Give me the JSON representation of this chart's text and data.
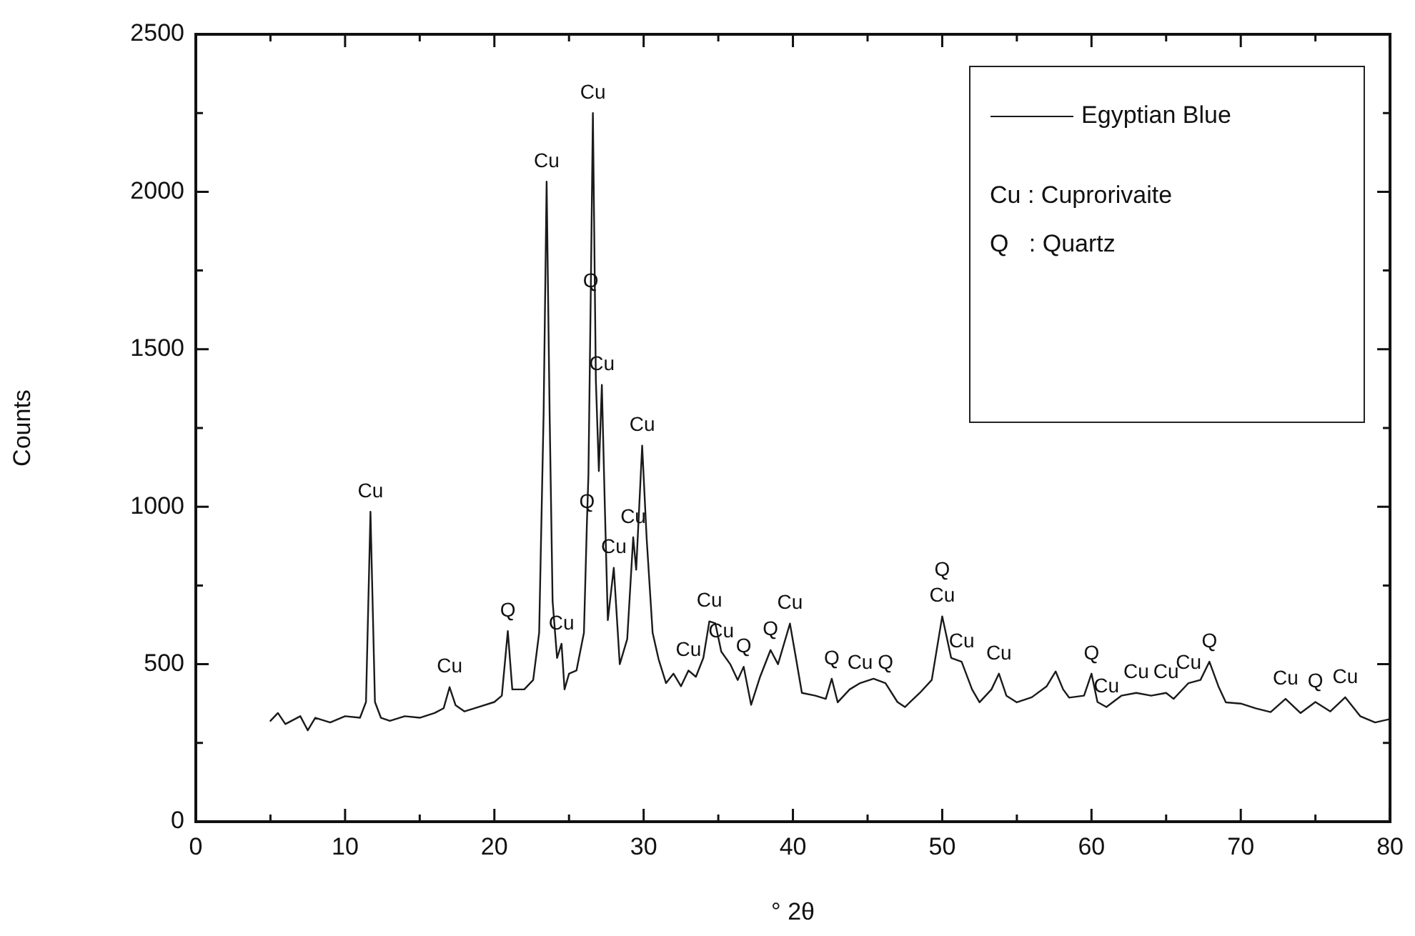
{
  "chart_data": {
    "type": "line",
    "xlabel": "° 2θ",
    "ylabel": "Counts",
    "legend": "top right",
    "marker": "none",
    "xlim": [
      0,
      80
    ],
    "ylim": [
      0,
      2500
    ],
    "xticks": [
      0,
      {
        "value": 5,
        "label": null
      },
      10,
      {
        "value": 15,
        "label": null
      },
      20,
      {
        "value": 25,
        "label": null
      },
      30,
      {
        "value": 35,
        "label": null
      },
      40,
      {
        "value": 45,
        "label": null
      },
      50,
      {
        "value": 55,
        "label": null
      },
      60,
      {
        "value": 65,
        "label": null
      },
      70,
      {
        "value": 75,
        "label": null
      },
      80
    ],
    "yticks": [
      0,
      {
        "value": 250,
        "label": null
      },
      500,
      {
        "value": 750,
        "label": null
      },
      1000,
      {
        "value": 1250,
        "label": null
      },
      1500,
      {
        "value": 1750,
        "label": null
      },
      2000,
      {
        "value": 2250,
        "label": null
      },
      2500
    ],
    "series": [
      {
        "name": "Egyptian Blue",
        "color": "#1a1a1a",
        "x": [
          5,
          5.5,
          6,
          7,
          7.5,
          8,
          9,
          10,
          11,
          11.4,
          11.7,
          12.0,
          12.4,
          13,
          14,
          15,
          16,
          16.6,
          17.0,
          17.4,
          18,
          19,
          20,
          20.5,
          20.9,
          21.2,
          22,
          22.6,
          23.0,
          23.3,
          23.5,
          23.7,
          23.9,
          24.2,
          24.5,
          24.7,
          25.0,
          25.5,
          26.0,
          26.2,
          26.3,
          26.45,
          26.6,
          26.8,
          27.0,
          27.2,
          27.4,
          27.6,
          28.0,
          28.4,
          28.9,
          29.3,
          29.5,
          29.9,
          30.2,
          30.6,
          31,
          31.5,
          32,
          32.5,
          33,
          33.5,
          34.0,
          34.4,
          34.8,
          35.2,
          35.8,
          36.3,
          36.7,
          37.2,
          37.8,
          38.5,
          39.0,
          39.8,
          40.2,
          40.6,
          41.5,
          42.2,
          42.6,
          43,
          43.8,
          44.5,
          45.4,
          46.2,
          47,
          47.5,
          48.5,
          49.3,
          50.0,
          50.6,
          51.3,
          52,
          52.5,
          53.3,
          53.8,
          54.3,
          55,
          56,
          57.0,
          57.6,
          58.1,
          58.5,
          59.5,
          60.0,
          60.4,
          61,
          62,
          63,
          64,
          65,
          65.5,
          66.5,
          67.3,
          67.9,
          68.5,
          69,
          70,
          71,
          72,
          73,
          74,
          75,
          76,
          77,
          78,
          79,
          80
        ],
        "values": [
          320,
          345,
          310,
          335,
          290,
          330,
          315,
          335,
          330,
          380,
          984,
          380,
          330,
          320,
          335,
          330,
          345,
          360,
          427,
          370,
          350,
          365,
          380,
          400,
          605,
          420,
          420,
          450,
          600,
          1300,
          2032,
          1300,
          700,
          520,
          565,
          420,
          470,
          480,
          600,
          950,
          1100,
          1650,
          2250,
          1400,
          1113,
          1387,
          1000,
          640,
          806,
          500,
          580,
          903,
          800,
          1194,
          900,
          600,
          516,
          440,
          470,
          430,
          480,
          460,
          520,
          636,
          630,
          540,
          500,
          450,
          492,
          371,
          460,
          545,
          500,
          629,
          520,
          409,
          400,
          390,
          454,
          379,
          420,
          440,
          454,
          440,
          380,
          364,
          409,
          450,
          652,
          520,
          508,
          420,
          379,
          420,
          470,
          400,
          379,
          395,
          430,
          477,
          420,
          394,
          400,
          470,
          380,
          364,
          400,
          409,
          400,
          409,
          390,
          440,
          450,
          508,
          430,
          379,
          375,
          360,
          348,
          390,
          345,
          380,
          350,
          395,
          335,
          315,
          326
        ]
      }
    ],
    "annotations": [
      {
        "text": "Cu",
        "x": 11.7,
        "y": 984
      },
      {
        "text": "Cu",
        "x": 17.0,
        "y": 427
      },
      {
        "text": "Q",
        "x": 20.9,
        "y": 605
      },
      {
        "text": "Cu",
        "x": 23.5,
        "y": 2032
      },
      {
        "text": "Cu",
        "x": 24.5,
        "y": 565
      },
      {
        "text": "Q",
        "x": 26.45,
        "y": 1650
      },
      {
        "text": "Q",
        "x": 26.2,
        "y": 950
      },
      {
        "text": "Cu",
        "x": 26.6,
        "y": 2250
      },
      {
        "text": "Cu",
        "x": 27.2,
        "y": 1387
      },
      {
        "text": "Cu",
        "x": 29.9,
        "y": 1194
      },
      {
        "text": "Cu",
        "x": 29.3,
        "y": 903
      },
      {
        "text": "Cu",
        "x": 28.0,
        "y": 806
      },
      {
        "text": "Cu",
        "x": 33,
        "y": 480
      },
      {
        "text": "Cu",
        "x": 34.4,
        "y": 636
      },
      {
        "text": "Cu",
        "x": 35.2,
        "y": 540
      },
      {
        "text": "Q",
        "x": 36.7,
        "y": 492
      },
      {
        "text": "Q",
        "x": 38.5,
        "y": 545
      },
      {
        "text": "Cu",
        "x": 39.8,
        "y": 629
      },
      {
        "text": "Q",
        "x": 42.6,
        "y": 454
      },
      {
        "text": "Cu",
        "x": 44.5,
        "y": 440
      },
      {
        "text": "Q",
        "x": 46.2,
        "y": 440
      },
      {
        "text": "Cu",
        "x": 50.0,
        "y": 652
      },
      {
        "text": "Q",
        "x": 50.0,
        "y": 652
      },
      {
        "text": "Cu",
        "x": 51.3,
        "y": 508
      },
      {
        "text": "Cu",
        "x": 53.8,
        "y": 470
      },
      {
        "text": "Q",
        "x": 60.0,
        "y": 470
      },
      {
        "text": "Cu",
        "x": 61,
        "y": 364
      },
      {
        "text": "Cu",
        "x": 63,
        "y": 409
      },
      {
        "text": "Cu",
        "x": 65,
        "y": 409
      },
      {
        "text": "Cu",
        "x": 66.5,
        "y": 440
      },
      {
        "text": "Q",
        "x": 67.9,
        "y": 508
      },
      {
        "text": "Cu",
        "x": 73,
        "y": 390
      },
      {
        "text": "Q",
        "x": 75,
        "y": 380
      },
      {
        "text": "Cu",
        "x": 77,
        "y": 395
      },
      "Cu : Cuprorivaite",
      "Q   : Quartz"
    ]
  }
}
